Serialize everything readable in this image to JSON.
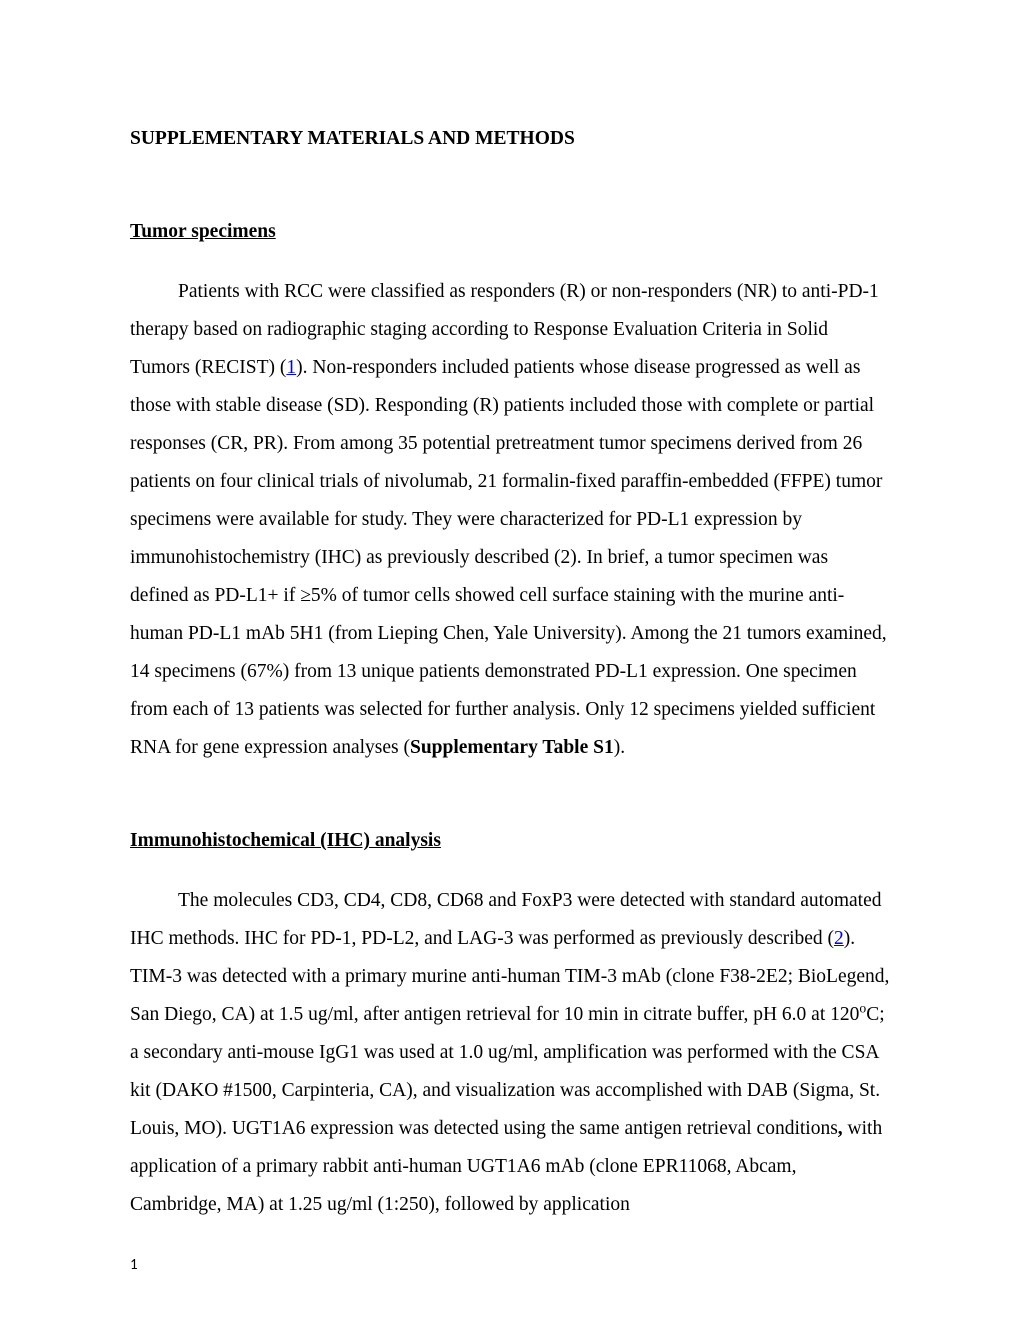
{
  "page": {
    "main_heading": "SUPPLEMENTARY MATERIALS AND METHODS",
    "section1": {
      "heading": "Tumor specimens ",
      "para": "Patients with RCC were classified as responders (R) or non-responders (NR) to anti-PD-1 therapy based on radiographic staging according to Response Evaluation Criteria in Solid Tumors (RECIST) (",
      "link1": "1",
      "para_cont": "). Non-responders included patients whose disease progressed as well as those with stable disease (SD). Responding (R) patients included those with complete or partial responses (CR, PR). From among 35 potential pretreatment tumor specimens derived from 26 patients on four clinical trials of nivolumab, 21 formalin-fixed paraffin-embedded (FFPE) tumor specimens were available for study.  They were characterized for PD-L1 expression by immunohistochemistry (IHC) as previously described (2). In brief, a tumor specimen was defined as  PD-L1+ if  ≥5% of tumor cells showed cell surface staining with the murine anti-human PD-L1 mAb 5H1 (from Lieping Chen, Yale University).  Among the 21 tumors examined, 14 specimens (67%) from 13 unique patients demonstrated PD-L1 expression.  One specimen from each of 13 patients was selected for further analysis.  Only 12 specimens yielded sufficient RNA for gene expression analyses (",
      "bold_ref": "Supplementary Table S1",
      "para_end": ")."
    },
    "section2": {
      "heading": "Immunohistochemical (IHC) analysis",
      "para_start": "The molecules CD3, CD4, CD8, CD68 and FoxP3 were detected with standard automated IHC methods.  IHC for PD-1, PD-L2, and LAG-3 was performed as previously described (",
      "link2": "2",
      "para_mid": "). TIM-3 was detected with a primary murine anti-human TIM-3 mAb (clone F38-2E2; BioLegend, San Diego, CA) at 1.5 ug/ml, after antigen retrieval for 10 min in citrate buffer, pH 6.0 at 120",
      "sup": "o",
      "para_cont2": "C; a secondary anti-mouse IgG1 was used at 1.0 ug/ml, amplification was performed with the CSA kit (DAKO #1500, Carpinteria, CA), and visualization was accomplished with DAB (Sigma, St. Louis, MO).  UGT1A6 expression was detected using the same antigen retrieval conditions",
      "bold_comma": ",",
      "para_end2": " with application of a primary rabbit anti-human UGT1A6 mAb (clone EPR11068, Abcam, Cambridge, MA) at 1.25 ug/ml (1:250), followed by application"
    },
    "page_number": "1"
  }
}
